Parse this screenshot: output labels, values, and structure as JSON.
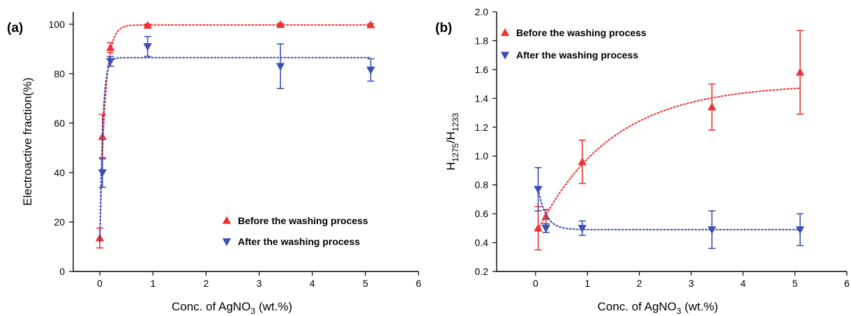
{
  "colors": {
    "before": "#ee3232",
    "after": "#3c4fb4",
    "axis": "#000000"
  },
  "chart_data": [
    {
      "panel_label": "(a)",
      "type": "scatter",
      "xlabel": "Conc. of AgNO",
      "xlabel_sub": "3",
      "xlabel_suffix": " (wt.%)",
      "ylabel": "Electroactive fraction(%)",
      "xlim": [
        -0.5,
        6
      ],
      "ylim": [
        0,
        105
      ],
      "xticks": [
        0,
        1,
        2,
        3,
        4,
        5,
        6
      ],
      "xtick_labels": [
        "0",
        "1",
        "2",
        "3",
        "4",
        "5",
        "6"
      ],
      "yticks": [
        0,
        20,
        40,
        60,
        80,
        100
      ],
      "ytick_labels": [
        "0",
        "20",
        "40",
        "60",
        "80",
        "100"
      ],
      "legend_position": "bottom-right",
      "series": [
        {
          "name": "Before the washing process",
          "marker": "triangle-up",
          "color_key": "before",
          "x": [
            0.0,
            0.05,
            0.2,
            0.9,
            3.4,
            5.1
          ],
          "y": [
            13.5,
            54.5,
            90.5,
            99.5,
            99.8,
            99.7
          ],
          "err": [
            4,
            9,
            2,
            0.5,
            0.5,
            0.5
          ],
          "fit": {
            "model": "exp_rise",
            "y0": 12,
            "plateau": 99.7,
            "k": 10.5
          }
        },
        {
          "name": "After the washing process",
          "marker": "triangle-down",
          "color_key": "after",
          "x": [
            0.05,
            0.2,
            0.9,
            3.4,
            5.1
          ],
          "y": [
            40,
            85,
            91,
            83,
            81.5
          ],
          "err": [
            6,
            2,
            4,
            9,
            4.5
          ],
          "fit": {
            "model": "exp_rise",
            "y0": 12,
            "plateau": 86.5,
            "k": 18
          }
        }
      ]
    },
    {
      "panel_label": "(b)",
      "type": "scatter",
      "xlabel": "Conc. of AgNO",
      "xlabel_sub": "3",
      "xlabel_suffix": " (wt.%)",
      "ylabel_main": "H",
      "ylabel_sub1": "1275",
      "ylabel_mid": "/H",
      "ylabel_sub2": "1233",
      "xlim": [
        -0.75,
        6
      ],
      "ylim": [
        0.2,
        2.0
      ],
      "xticks": [
        0,
        1,
        2,
        3,
        4,
        5,
        6
      ],
      "xtick_labels": [
        "0",
        "1",
        "2",
        "3",
        "4",
        "5",
        "6"
      ],
      "yticks": [
        0.2,
        0.4,
        0.6,
        0.8,
        1.0,
        1.2,
        1.4,
        1.6,
        1.8,
        2.0
      ],
      "ytick_labels": [
        "0.2",
        "0.4",
        "0.6",
        "0.8",
        "1.0",
        "1.2",
        "1.4",
        "1.6",
        "1.8",
        "2.0"
      ],
      "legend_position": "top-left",
      "series": [
        {
          "name": "Before the washing process",
          "marker": "triangle-up",
          "color_key": "before",
          "x": [
            0.05,
            0.2,
            0.9,
            3.4,
            5.1
          ],
          "y": [
            0.5,
            0.58,
            0.96,
            1.34,
            1.58
          ],
          "err": [
            0.15,
            0.05,
            0.15,
            0.16,
            0.29
          ],
          "fit": {
            "model": "exp_rise",
            "y0": 0.49,
            "plateau": 1.5,
            "k": 0.7,
            "x_start": 0.05
          }
        },
        {
          "name": "After the washing process",
          "marker": "triangle-down",
          "color_key": "after",
          "x": [
            0.05,
            0.2,
            0.9,
            3.4,
            5.1
          ],
          "y": [
            0.77,
            0.5,
            0.5,
            0.49,
            0.49
          ],
          "err": [
            0.15,
            0.03,
            0.05,
            0.13,
            0.11
          ],
          "fit": {
            "model": "exp_rise",
            "y0": 0.77,
            "plateau": 0.49,
            "k": 6.5,
            "x_start": 0.05
          }
        }
      ]
    }
  ]
}
